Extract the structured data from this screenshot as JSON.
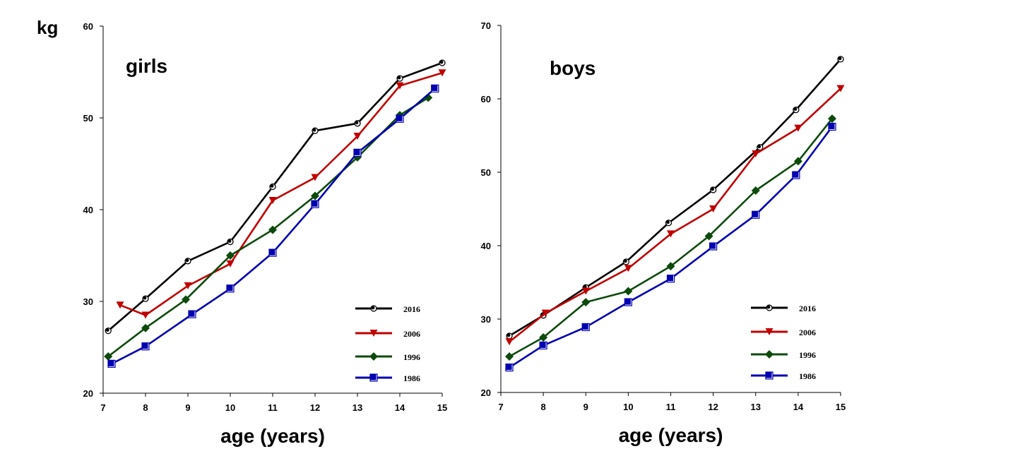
{
  "chart_data": [
    {
      "type": "line",
      "title": "girls",
      "xlabel": "age (years)",
      "ylabel": "kg",
      "xlim": [
        7,
        15
      ],
      "ylim": [
        20,
        60
      ],
      "xticks": [
        7,
        8,
        9,
        10,
        11,
        12,
        13,
        14,
        15
      ],
      "yticks": [
        20,
        30,
        40,
        50,
        60
      ],
      "grid": false,
      "legend_position": "bottom-right",
      "series": [
        {
          "name": "2016",
          "color": "#000000",
          "marker": "circle",
          "x": [
            7.12,
            8,
            9,
            10,
            11,
            12,
            13,
            14,
            15
          ],
          "y": [
            26.8,
            30.3,
            34.4,
            36.5,
            42.5,
            48.6,
            49.4,
            54.3,
            56.0
          ]
        },
        {
          "name": "2006",
          "color": "#c00000",
          "marker": "triangle-down",
          "x": [
            7.4,
            8,
            9,
            10,
            11,
            12,
            13,
            14,
            15
          ],
          "y": [
            29.6,
            28.5,
            31.7,
            34.1,
            41.0,
            43.5,
            48.0,
            53.5,
            54.9
          ]
        },
        {
          "name": "1996",
          "color": "#0b4a0b",
          "marker": "diamond",
          "x": [
            7.12,
            8,
            8.95,
            10,
            11,
            12,
            13,
            14,
            14.67
          ],
          "y": [
            24.0,
            27.1,
            30.2,
            35.0,
            37.8,
            41.5,
            45.7,
            50.3,
            52.2
          ]
        },
        {
          "name": "1986",
          "color": "#0000b0",
          "marker": "square",
          "x": [
            7.2,
            8,
            9.1,
            10,
            11,
            12,
            13,
            14,
            14.83
          ],
          "y": [
            23.2,
            25.1,
            28.6,
            31.4,
            35.3,
            40.6,
            46.2,
            49.9,
            53.2
          ]
        }
      ]
    },
    {
      "type": "line",
      "title": "boys",
      "xlabel": "age (years)",
      "ylabel": "",
      "xlim": [
        7,
        15
      ],
      "ylim": [
        20,
        70
      ],
      "xticks": [
        7,
        8,
        9,
        10,
        11,
        12,
        13,
        14,
        15
      ],
      "yticks": [
        20,
        30,
        40,
        50,
        60,
        70
      ],
      "grid": false,
      "legend_position": "bottom-right",
      "series": [
        {
          "name": "2016",
          "color": "#000000",
          "marker": "circle",
          "x": [
            7.2,
            8,
            9,
            9.95,
            10.95,
            12,
            13.1,
            13.95,
            15
          ],
          "y": [
            27.7,
            30.5,
            34.3,
            37.8,
            43.1,
            47.6,
            53.4,
            58.5,
            65.4
          ]
        },
        {
          "name": "2006",
          "color": "#c00000",
          "marker": "triangle-down",
          "x": [
            7.2,
            8.05,
            9,
            10,
            11,
            12,
            13,
            14,
            15
          ],
          "y": [
            26.9,
            30.8,
            33.8,
            36.9,
            41.6,
            45.0,
            52.5,
            56.0,
            61.4
          ]
        },
        {
          "name": "1996",
          "color": "#0b4a0b",
          "marker": "diamond",
          "x": [
            7.2,
            8,
            9,
            10,
            11,
            11.9,
            13,
            14,
            14.8
          ],
          "y": [
            24.9,
            27.5,
            32.3,
            33.8,
            37.2,
            41.3,
            47.5,
            51.5,
            57.3
          ]
        },
        {
          "name": "1986",
          "color": "#0000b0",
          "marker": "square",
          "x": [
            7.2,
            8,
            9,
            10,
            11,
            12,
            13,
            13.95,
            14.8
          ],
          "y": [
            23.4,
            26.4,
            28.9,
            32.3,
            35.5,
            39.9,
            44.2,
            49.6,
            56.2
          ]
        }
      ]
    }
  ]
}
